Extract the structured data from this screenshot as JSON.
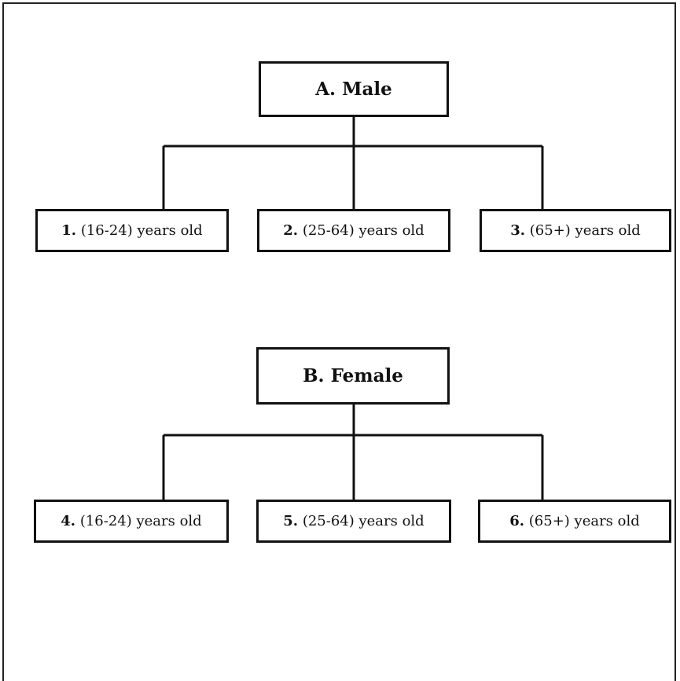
{
  "diagram": {
    "groups": [
      {
        "label": "A. Male",
        "children": [
          {
            "number": "1.",
            "text": "(16-24) years old"
          },
          {
            "number": "2.",
            "text": "(25-64) years old"
          },
          {
            "number": "3.",
            "text": "(65+) years old"
          }
        ]
      },
      {
        "label": "B. Female",
        "children": [
          {
            "number": "4.",
            "text": "(16-24) years old"
          },
          {
            "number": "5.",
            "text": "(25-64) years old"
          },
          {
            "number": "6.",
            "text": "(65+) years old"
          }
        ]
      }
    ]
  }
}
